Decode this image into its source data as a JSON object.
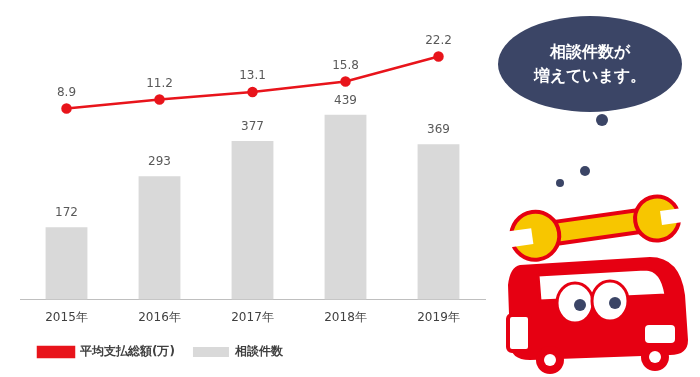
{
  "chart_data": {
    "type": "bar",
    "categories": [
      "2015年",
      "2016年",
      "2017年",
      "2018年",
      "2019年"
    ],
    "series": [
      {
        "name": "平均支払総額(万)",
        "type": "line",
        "color": "#e8141b",
        "marker": "circle",
        "axis": "y2",
        "values": [
          8.9,
          11.2,
          13.1,
          15.8,
          22.2
        ]
      },
      {
        "name": "相談件数",
        "type": "bar",
        "color": "#d9d9d9",
        "values": [
          172,
          293,
          377,
          439,
          369
        ]
      }
    ],
    "ylim": [
      0,
      650
    ],
    "y2lim": [
      -40,
      30
    ],
    "data_labels": true,
    "legend": "lower left",
    "grid": false,
    "tick_labels": "x",
    "annotation": "相談件数が\n増えています。"
  }
}
